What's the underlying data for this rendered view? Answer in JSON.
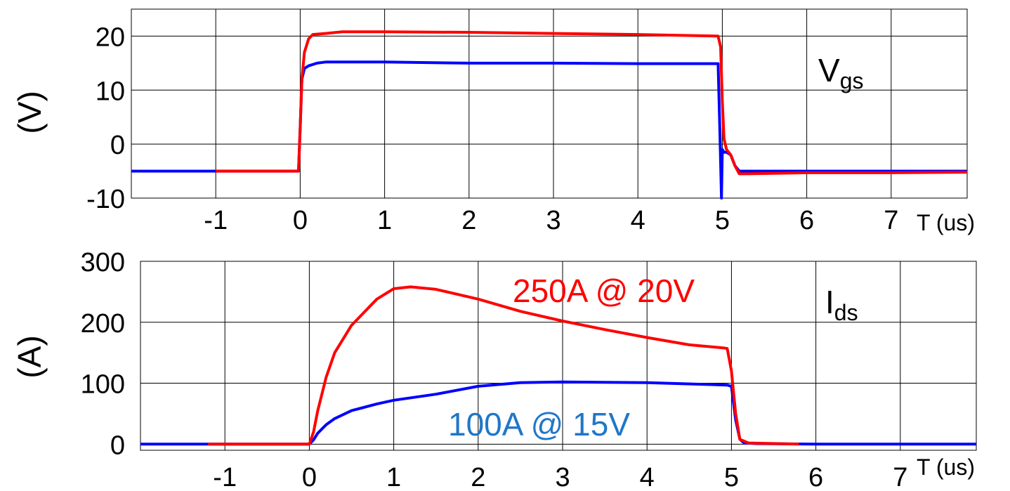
{
  "chart_data": [
    {
      "type": "line",
      "ylabel": "(V)",
      "xlabel": "T (us)",
      "label_main": "V",
      "label_sub": "gs",
      "xlim": [
        -2,
        7.9
      ],
      "ylim": [
        -10,
        25
      ],
      "x_ticks": [
        "-1",
        "0",
        "1",
        "2",
        "3",
        "4",
        "5",
        "6",
        "7"
      ],
      "y_ticks": [
        "20",
        "10",
        "0",
        "-10"
      ],
      "grid": true,
      "series": [
        {
          "color": "#0000ff",
          "x": [
            -2.0,
            -1.0,
            -0.02,
            0.0,
            0.02,
            0.05,
            0.1,
            0.2,
            0.3,
            0.5,
            1.0,
            2.0,
            3.0,
            4.0,
            4.95,
            4.97,
            4.99,
            5.0,
            5.02,
            5.05,
            5.1,
            5.15,
            5.2,
            6.0,
            7.0,
            7.9
          ],
          "y": [
            -5,
            -5,
            -5,
            3,
            12,
            14,
            14.5,
            15,
            15.2,
            15.2,
            15.2,
            15,
            15,
            14.9,
            14.9,
            3,
            -10,
            -1,
            -1.5,
            -1.5,
            -2,
            -4,
            -5,
            -5,
            -5,
            -5
          ]
        },
        {
          "color": "#ff0000",
          "x": [
            -1.0,
            -0.02,
            0.0,
            0.02,
            0.05,
            0.1,
            0.15,
            0.3,
            0.5,
            1.0,
            2.0,
            3.0,
            4.0,
            4.95,
            4.98,
            5.0,
            5.02,
            5.05,
            5.1,
            5.15,
            5.2,
            5.3,
            6.0,
            7.0,
            7.9
          ],
          "y": [
            -5,
            -5,
            3,
            12,
            17,
            19.5,
            20.3,
            20.5,
            20.8,
            20.8,
            20.7,
            20.5,
            20.3,
            20,
            18,
            8,
            1,
            -1,
            -2,
            -4,
            -5.5,
            -5.5,
            -5.3,
            -5.3,
            -5.2
          ]
        }
      ]
    },
    {
      "type": "line",
      "ylabel": "(A)",
      "xlabel": "T (us)",
      "label_main": "I",
      "label_sub": "ds",
      "xlim": [
        -2,
        7.9
      ],
      "ylim": [
        -10,
        300
      ],
      "x_ticks": [
        "-1",
        "0",
        "1",
        "2",
        "3",
        "4",
        "5",
        "6",
        "7"
      ],
      "y_ticks": [
        "300",
        "200",
        "100",
        "0"
      ],
      "grid": true,
      "series": [
        {
          "color": "#0000ff",
          "x": [
            -2.0,
            0.0,
            0.05,
            0.1,
            0.2,
            0.3,
            0.5,
            0.8,
            1.0,
            1.5,
            2.0,
            2.5,
            3.0,
            4.0,
            4.95,
            5.0,
            5.05,
            5.1,
            5.15,
            5.3,
            6.0,
            7.0,
            7.9
          ],
          "y": [
            0,
            0,
            7,
            18,
            32,
            42,
            55,
            66,
            72,
            82,
            95,
            101,
            102,
            101,
            97,
            95,
            40,
            8,
            2,
            1,
            0,
            0,
            0
          ]
        },
        {
          "color": "#ff0000",
          "x": [
            -1.2,
            -0.1,
            0.0,
            0.05,
            0.1,
            0.2,
            0.3,
            0.5,
            0.8,
            1.0,
            1.2,
            1.5,
            2.0,
            2.5,
            3.0,
            3.5,
            4.0,
            4.5,
            4.9,
            4.95,
            5.0,
            5.05,
            5.1,
            5.2,
            5.8
          ],
          "y": [
            0,
            0,
            0,
            20,
            55,
            110,
            150,
            195,
            238,
            255,
            258,
            254,
            238,
            218,
            202,
            188,
            175,
            163,
            158,
            157,
            120,
            50,
            8,
            2,
            0
          ]
        }
      ]
    }
  ],
  "annotations": {
    "red_label": "250A @ 20V",
    "red_color": "#ff0000",
    "blue_label": "100A @ 15V",
    "blue_color": "#1f77c8"
  }
}
